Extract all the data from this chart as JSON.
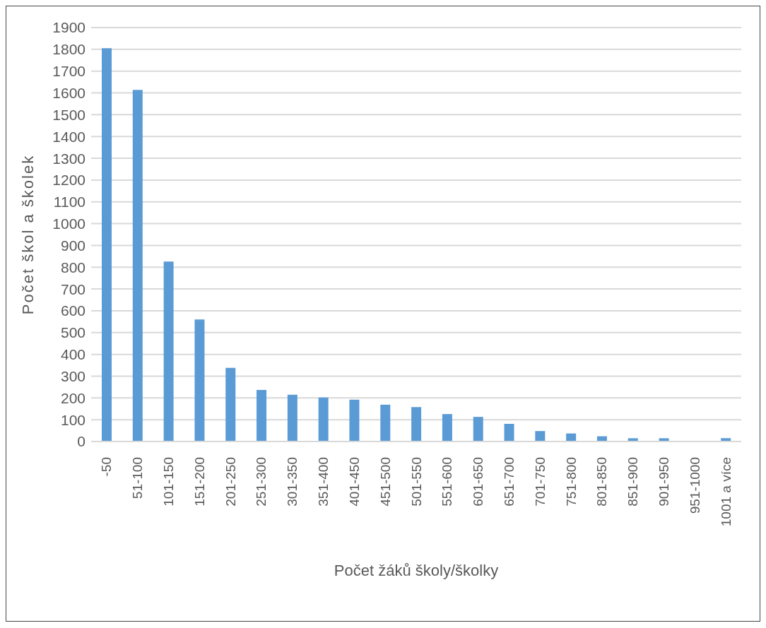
{
  "chart_data": {
    "type": "bar",
    "xlabel": "Počet žáků školy/školky",
    "ylabel": "Počet škol a školek",
    "categories": [
      "-50",
      "51-100",
      "101-150",
      "151-200",
      "201-250",
      "251-300",
      "301-350",
      "351-400",
      "401-450",
      "451-500",
      "501-550",
      "551-600",
      "601-650",
      "651-700",
      "701-750",
      "751-800",
      "801-850",
      "851-900",
      "901-950",
      "951-1000",
      "1001 a více"
    ],
    "values": [
      1805,
      1614,
      826,
      560,
      338,
      237,
      215,
      202,
      192,
      169,
      158,
      126,
      113,
      81,
      48,
      37,
      24,
      15,
      15,
      0,
      15
    ],
    "color": "#5b9bd5",
    "ylim": [
      0,
      1900
    ],
    "yticks": [
      0,
      100,
      200,
      300,
      400,
      500,
      600,
      700,
      800,
      900,
      1000,
      1100,
      1200,
      1300,
      1400,
      1500,
      1600,
      1700,
      1800,
      1900
    ],
    "grid": "y"
  }
}
